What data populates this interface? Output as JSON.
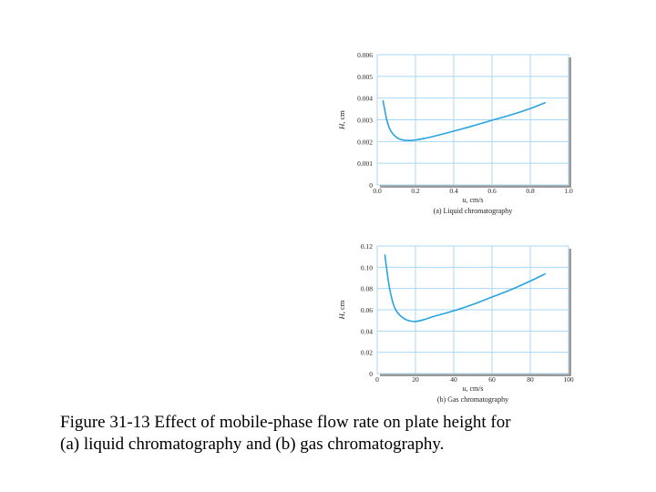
{
  "chart_data": [
    {
      "type": "line",
      "ylabel_var": "H",
      "ylabel_unit": ", cm",
      "xlabel_var": "u",
      "xlabel_unit": ", cm/s",
      "subtitle": "(a) Liquid chromatography",
      "xlim": [
        0,
        1.0
      ],
      "ylim": [
        0,
        0.006
      ],
      "xticks": [
        "0.0",
        "0.2",
        "0.4",
        "0.6",
        "0.8",
        "1.0"
      ],
      "yticks": [
        "0",
        "0.001",
        "0.002",
        "0.003",
        "0.004",
        "0.005",
        "0.006"
      ],
      "grid": true,
      "color": "#29a3e0",
      "series": [
        {
          "x": [
            0.03,
            0.05,
            0.07,
            0.1,
            0.13,
            0.16,
            0.2,
            0.25,
            0.3,
            0.4,
            0.5,
            0.6,
            0.7,
            0.8,
            0.88
          ],
          "values": [
            0.0039,
            0.003,
            0.0025,
            0.0022,
            0.00208,
            0.00205,
            0.00207,
            0.00215,
            0.00225,
            0.00248,
            0.00272,
            0.00298,
            0.00323,
            0.00352,
            0.0038
          ]
        }
      ]
    },
    {
      "type": "line",
      "ylabel_var": "H",
      "ylabel_unit": ", cm",
      "xlabel_var": "u",
      "xlabel_unit": ", cm/s",
      "subtitle": "(b) Gas chromatography",
      "xlim": [
        0,
        100
      ],
      "ylim": [
        0,
        0.12
      ],
      "xticks": [
        "0",
        "20",
        "40",
        "60",
        "80",
        "100"
      ],
      "yticks": [
        "0",
        "0.02",
        "0.04",
        "0.06",
        "0.08",
        "0.10",
        "0.12"
      ],
      "grid": true,
      "color": "#29a3e0",
      "series": [
        {
          "x": [
            4,
            6,
            8,
            10,
            13,
            16,
            20,
            25,
            30,
            40,
            50,
            60,
            70,
            80,
            88
          ],
          "values": [
            0.112,
            0.085,
            0.068,
            0.059,
            0.053,
            0.05,
            0.049,
            0.051,
            0.054,
            0.059,
            0.065,
            0.072,
            0.079,
            0.087,
            0.094
          ]
        }
      ]
    }
  ],
  "caption": {
    "line1": "Figure 31-13 Effect of mobile-phase flow rate on plate height for",
    "line2": "(a) liquid chromatography and (b) gas chromatography."
  }
}
